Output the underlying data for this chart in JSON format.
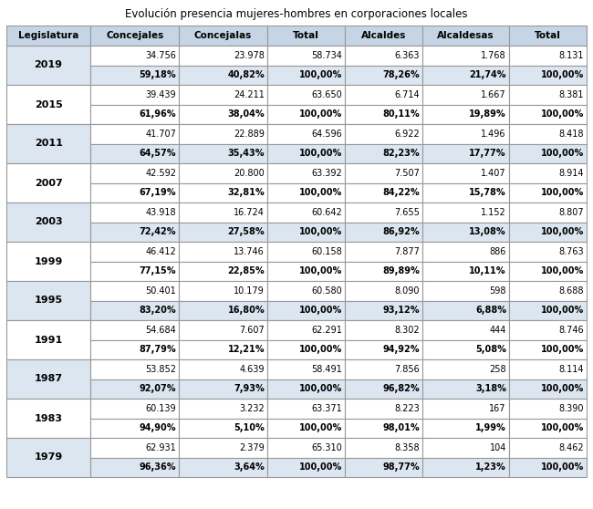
{
  "title": "Evolución presencia mujeres-hombres en corporaciones locales",
  "headers": [
    "Legislatura",
    "Concejales",
    "Concejalas",
    "Total",
    "Alcaldes",
    "Alcaldesas",
    "Total"
  ],
  "rows": [
    {
      "year": "2019",
      "row1": [
        "34.756",
        "23.978",
        "58.734",
        "6.363",
        "1.768",
        "8.131"
      ],
      "row2": [
        "59,18%",
        "40,82%",
        "100,00%",
        "78,26%",
        "21,74%",
        "100,00%"
      ]
    },
    {
      "year": "2015",
      "row1": [
        "39.439",
        "24.211",
        "63.650",
        "6.714",
        "1.667",
        "8.381"
      ],
      "row2": [
        "61,96%",
        "38,04%",
        "100,00%",
        "80,11%",
        "19,89%",
        "100,00%"
      ]
    },
    {
      "year": "2011",
      "row1": [
        "41.707",
        "22.889",
        "64.596",
        "6.922",
        "1.496",
        "8.418"
      ],
      "row2": [
        "64,57%",
        "35,43%",
        "100,00%",
        "82,23%",
        "17,77%",
        "100,00%"
      ]
    },
    {
      "year": "2007",
      "row1": [
        "42.592",
        "20.800",
        "63.392",
        "7.507",
        "1.407",
        "8.914"
      ],
      "row2": [
        "67,19%",
        "32,81%",
        "100,00%",
        "84,22%",
        "15,78%",
        "100,00%"
      ]
    },
    {
      "year": "2003",
      "row1": [
        "43.918",
        "16.724",
        "60.642",
        "7.655",
        "1.152",
        "8.807"
      ],
      "row2": [
        "72,42%",
        "27,58%",
        "100,00%",
        "86,92%",
        "13,08%",
        "100,00%"
      ]
    },
    {
      "year": "1999",
      "row1": [
        "46.412",
        "13.746",
        "60.158",
        "7.877",
        "886",
        "8.763"
      ],
      "row2": [
        "77,15%",
        "22,85%",
        "100,00%",
        "89,89%",
        "10,11%",
        "100,00%"
      ]
    },
    {
      "year": "1995",
      "row1": [
        "50.401",
        "10.179",
        "60.580",
        "8.090",
        "598",
        "8.688"
      ],
      "row2": [
        "83,20%",
        "16,80%",
        "100,00%",
        "93,12%",
        "6,88%",
        "100,00%"
      ]
    },
    {
      "year": "1991",
      "row1": [
        "54.684",
        "7.607",
        "62.291",
        "8.302",
        "444",
        "8.746"
      ],
      "row2": [
        "87,79%",
        "12,21%",
        "100,00%",
        "94,92%",
        "5,08%",
        "100,00%"
      ]
    },
    {
      "year": "1987",
      "row1": [
        "53.852",
        "4.639",
        "58.491",
        "7.856",
        "258",
        "8.114"
      ],
      "row2": [
        "92,07%",
        "7,93%",
        "100,00%",
        "96,82%",
        "3,18%",
        "100,00%"
      ]
    },
    {
      "year": "1983",
      "row1": [
        "60.139",
        "3.232",
        "63.371",
        "8.223",
        "167",
        "8.390"
      ],
      "row2": [
        "94,90%",
        "5,10%",
        "100,00%",
        "98,01%",
        "1,99%",
        "100,00%"
      ]
    },
    {
      "year": "1979",
      "row1": [
        "62.931",
        "2.379",
        "65.310",
        "8.358",
        "104",
        "8.462"
      ],
      "row2": [
        "96,36%",
        "3,64%",
        "100,00%",
        "98,77%",
        "1,23%",
        "100,00%"
      ]
    }
  ],
  "header_bg": "#c5d5e5",
  "year_bg_even": "#dce6f0",
  "year_bg_odd": "#ffffff",
  "row1_bg_even": "#ffffff",
  "row1_bg_odd": "#ffffff",
  "row2_bg_even": "#dce6f0",
  "row2_bg_odd": "#ffffff",
  "border_color": "#999999",
  "title_fontsize": 8.5,
  "header_fontsize": 7.5,
  "cell_fontsize": 7.0,
  "year_fontsize": 8.0
}
